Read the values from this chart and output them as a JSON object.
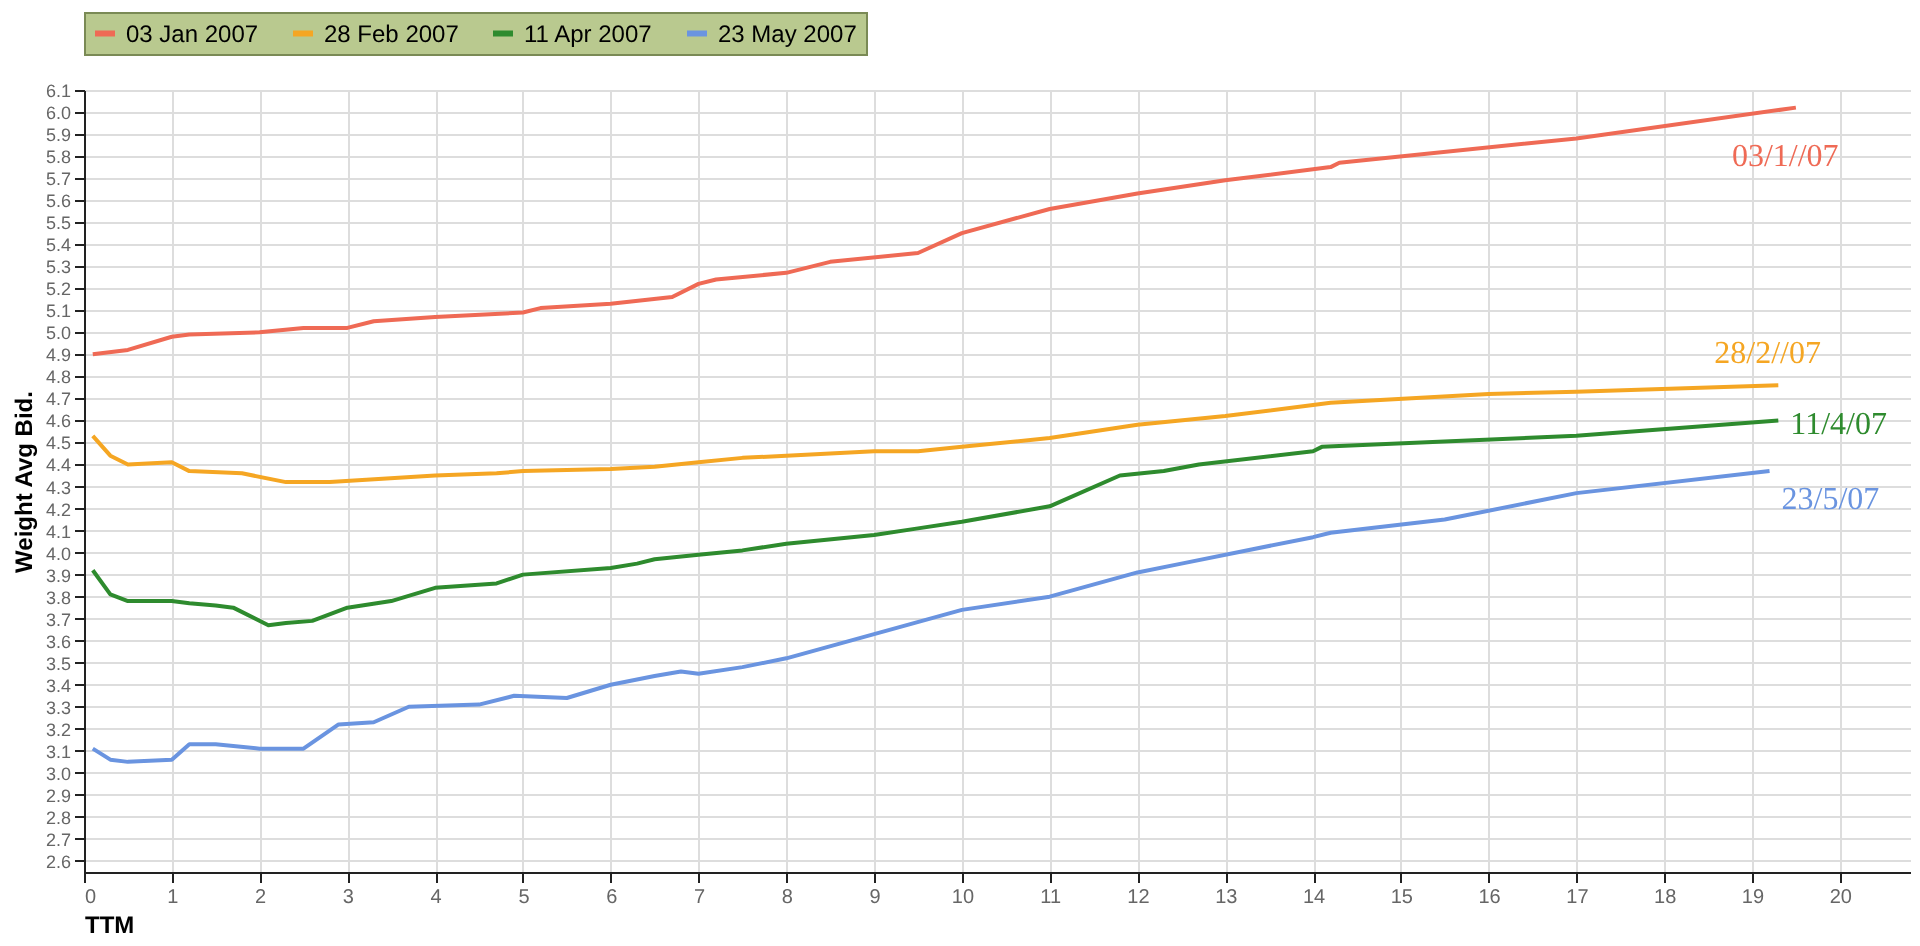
{
  "chart_data": {
    "type": "line",
    "xlabel": "TTM",
    "ylabel": "Weight Avg Bid.",
    "xlim": [
      0,
      20.8
    ],
    "xticks": [
      0,
      1,
      2,
      3,
      4,
      5,
      6,
      7,
      8,
      9,
      10,
      11,
      12,
      13,
      14,
      15,
      16,
      17,
      18,
      19,
      20
    ],
    "ylim": [
      2.55,
      6.1
    ],
    "yticks": [
      2.6,
      2.7,
      2.8,
      2.9,
      {
        "value": 3,
        "label": "3.0"
      },
      3.1,
      3.2,
      3.3,
      3.4,
      3.5,
      3.6,
      3.7,
      3.8,
      3.9,
      {
        "value": 4,
        "label": "4.0"
      },
      4.1,
      4.2,
      4.3,
      4.4,
      4.5,
      4.6,
      4.7,
      4.8,
      4.9,
      {
        "value": 5,
        "label": "5.0"
      },
      5.1,
      5.2,
      5.3,
      5.4,
      5.5,
      5.6,
      5.7,
      5.8,
      5.9,
      {
        "value": 6,
        "label": "6.0"
      },
      6.1
    ],
    "grid": true,
    "legend": "top",
    "line_style": "solid",
    "marker": "none",
    "series": [
      {
        "name": "03 Jan 2007",
        "color": "#ef6a55",
        "x": [
          0.1,
          0.5,
          1.0,
          1.2,
          2,
          2.5,
          3,
          3.3,
          4,
          5,
          5.2,
          6,
          6.7,
          7,
          7.2,
          8,
          8.5,
          9.5,
          10,
          11,
          12,
          13,
          14,
          14.2,
          14.3,
          17,
          19.5
        ],
        "values": [
          4.9,
          4.92,
          4.98,
          4.99,
          5.0,
          5.02,
          5.02,
          5.05,
          5.07,
          5.09,
          5.11,
          5.13,
          5.16,
          5.22,
          5.24,
          5.27,
          5.32,
          5.36,
          5.45,
          5.56,
          5.63,
          5.69,
          5.74,
          5.75,
          5.77,
          5.88,
          6.02
        ]
      },
      {
        "name": "28 Feb 2007",
        "color": "#f5a623",
        "x": [
          0.1,
          0.3,
          0.5,
          1,
          1.2,
          1.8,
          2.3,
          2.8,
          4,
          4.7,
          5,
          6,
          6.5,
          7,
          7.5,
          8,
          9,
          9.5,
          10,
          11,
          12,
          13,
          14,
          14.2,
          16,
          17,
          19.3
        ],
        "values": [
          4.53,
          4.44,
          4.4,
          4.41,
          4.37,
          4.36,
          4.32,
          4.32,
          4.35,
          4.36,
          4.37,
          4.38,
          4.39,
          4.41,
          4.43,
          4.44,
          4.46,
          4.46,
          4.48,
          4.52,
          4.58,
          4.62,
          4.67,
          4.68,
          4.72,
          4.73,
          4.76
        ]
      },
      {
        "name": "11 Apr 2007",
        "color": "#2e8b2e",
        "x": [
          0.1,
          0.3,
          0.5,
          1,
          1.2,
          1.5,
          1.7,
          2.1,
          2.3,
          2.6,
          3,
          3.5,
          4,
          4.7,
          5,
          6,
          6.3,
          6.5,
          7,
          7.5,
          8,
          9,
          9.5,
          10,
          11,
          11.8,
          12.3,
          12.7,
          14,
          14.1,
          17,
          19.3
        ],
        "values": [
          3.92,
          3.81,
          3.78,
          3.78,
          3.77,
          3.76,
          3.75,
          3.67,
          3.68,
          3.69,
          3.75,
          3.78,
          3.84,
          3.86,
          3.9,
          3.93,
          3.95,
          3.97,
          3.99,
          4.01,
          4.04,
          4.08,
          4.11,
          4.14,
          4.21,
          4.35,
          4.37,
          4.4,
          4.46,
          4.48,
          4.53,
          4.6
        ]
      },
      {
        "name": "23 May 2007",
        "color": "#6a94e0",
        "x": [
          0.1,
          0.3,
          0.5,
          1,
          1.2,
          1.5,
          2,
          2.5,
          2.9,
          3.3,
          3.7,
          4.5,
          4.9,
          5.5,
          6,
          6.5,
          6.8,
          7,
          7.5,
          8,
          9,
          10,
          11,
          12,
          12.5,
          14,
          14.2,
          15.5,
          17,
          19.2
        ],
        "values": [
          3.11,
          3.06,
          3.05,
          3.06,
          3.13,
          3.13,
          3.11,
          3.11,
          3.22,
          3.23,
          3.3,
          3.31,
          3.35,
          3.34,
          3.4,
          3.44,
          3.46,
          3.45,
          3.48,
          3.52,
          3.63,
          3.74,
          3.8,
          3.91,
          3.95,
          4.07,
          4.09,
          4.15,
          4.27,
          4.37
        ]
      }
    ],
    "annotations": [
      "03/1//07",
      "28/2//07",
      "11/4/07",
      "23/5/07"
    ]
  }
}
